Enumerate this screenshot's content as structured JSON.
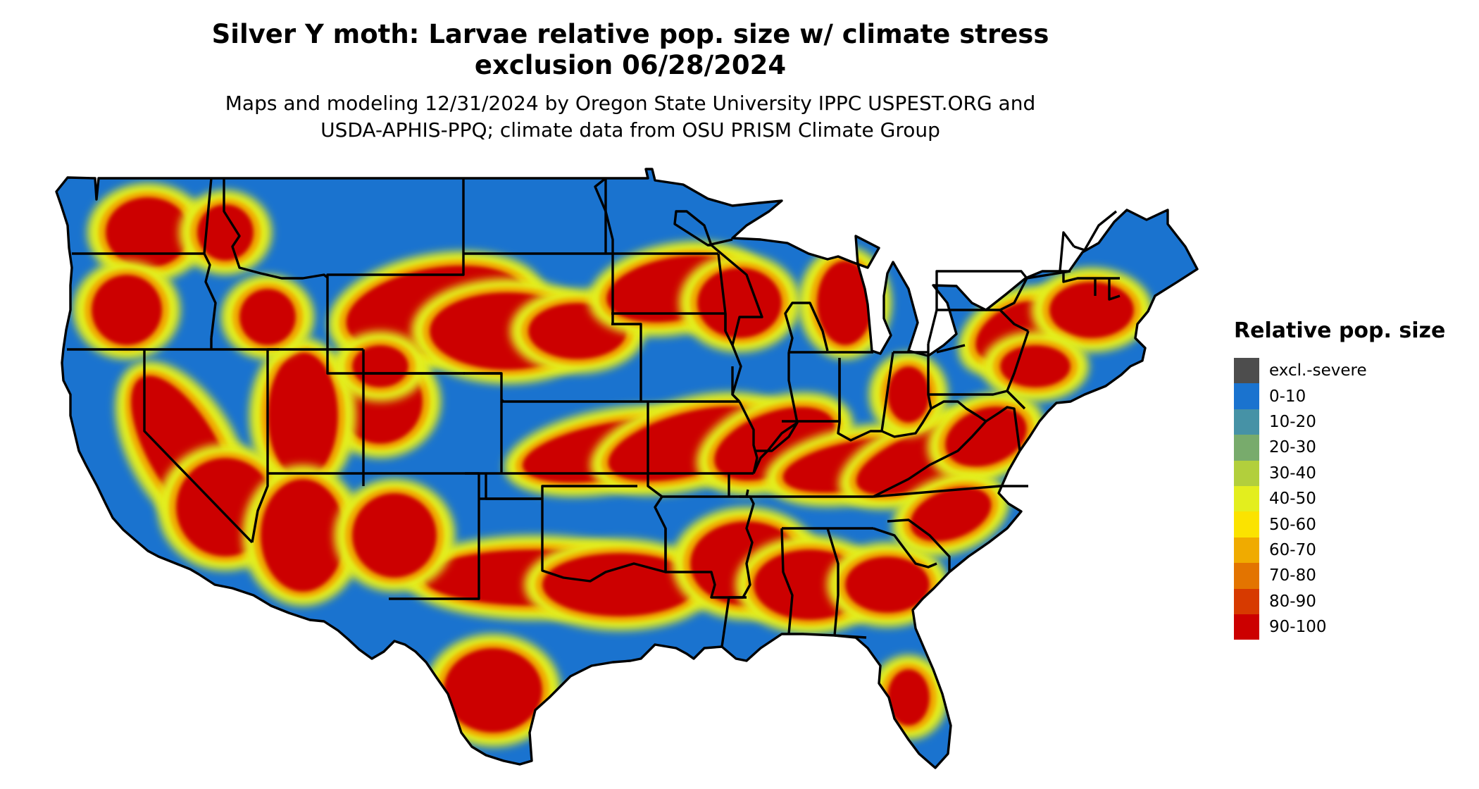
{
  "title": {
    "line1": "Silver Y moth: Larvae relative pop. size w/ climate stress",
    "line2": "exclusion 06/28/2024"
  },
  "subtitle": {
    "line1": "Maps and modeling 12/31/2024 by Oregon State University IPPC USPEST.ORG and",
    "line2": "USDA-APHIS-PPQ; climate data from OSU PRISM Climate Group"
  },
  "legend": {
    "title": "Relative pop. size",
    "items": [
      {
        "label": "excl.-severe",
        "color": "#4d4d4d"
      },
      {
        "label": "0-10",
        "color": "#1a73cf"
      },
      {
        "label": "10-20",
        "color": "#4692a6"
      },
      {
        "label": "20-30",
        "color": "#78ab6c"
      },
      {
        "label": "30-40",
        "color": "#b2cf3c"
      },
      {
        "label": "40-50",
        "color": "#e3ee1e"
      },
      {
        "label": "50-60",
        "color": "#fbe300"
      },
      {
        "label": "60-70",
        "color": "#f0ab00"
      },
      {
        "label": "70-80",
        "color": "#e37400"
      },
      {
        "label": "80-90",
        "color": "#d73a00"
      },
      {
        "label": "90-100",
        "color": "#cc0000"
      }
    ]
  },
  "map": {
    "base_color": "#1a73cf",
    "border_color": "#000000"
  }
}
